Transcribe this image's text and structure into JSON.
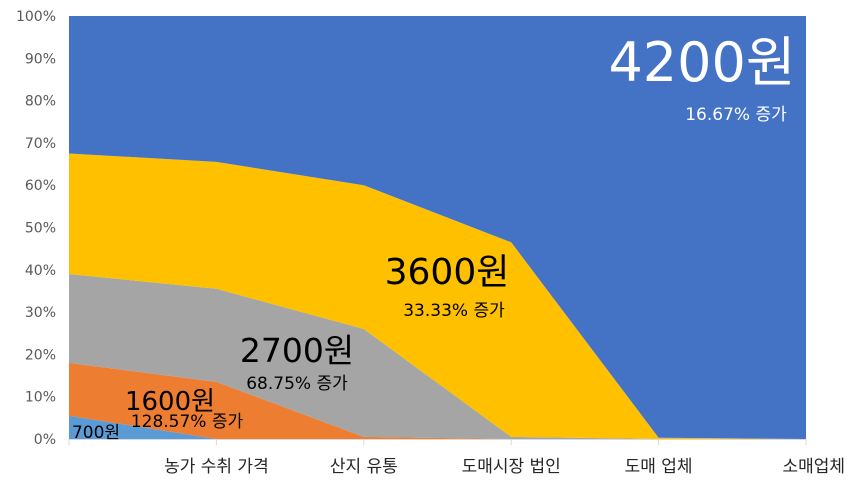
{
  "chart_data": {
    "type": "area",
    "stacking": "percent",
    "categories": [
      "",
      "농가 수취 가격",
      "산지 유통",
      "도매시장 법인",
      "도매 업체",
      "소매업체"
    ],
    "series": [
      {
        "key": "s700",
        "color": "#5b9bd5",
        "values": [
          5.5,
          0,
          0,
          0,
          0,
          0
        ]
      },
      {
        "key": "s1600",
        "color": "#ed7d31",
        "values": [
          12.5,
          13.5,
          0.5,
          0,
          0,
          0
        ]
      },
      {
        "key": "s2700",
        "color": "#a5a5a5",
        "values": [
          21,
          22,
          25.5,
          0.5,
          0,
          0
        ]
      },
      {
        "key": "s3600",
        "color": "#ffc000",
        "values": [
          28.5,
          30,
          34,
          46,
          0.3,
          0
        ]
      },
      {
        "key": "s4200",
        "color": "#4472c4",
        "values": [
          32.5,
          34.5,
          40,
          53.5,
          99.7,
          100
        ]
      }
    ],
    "ylim": [
      0,
      100
    ],
    "yticks": [
      "0%",
      "10%",
      "20%",
      "30%",
      "40%",
      "50%",
      "60%",
      "70%",
      "80%",
      "90%",
      "100%"
    ],
    "grid": false,
    "annotations": [
      {
        "series": "s700",
        "price": "700원",
        "change": ""
      },
      {
        "series": "s1600",
        "price": "1600원",
        "change": "128.57% 증가"
      },
      {
        "series": "s2700",
        "price": "2700원",
        "change": "68.75% 증가"
      },
      {
        "series": "s3600",
        "price": "3600원",
        "change": "33.33% 증가"
      },
      {
        "series": "s4200",
        "price": "4200원",
        "change": "16.67% 증가"
      }
    ]
  }
}
